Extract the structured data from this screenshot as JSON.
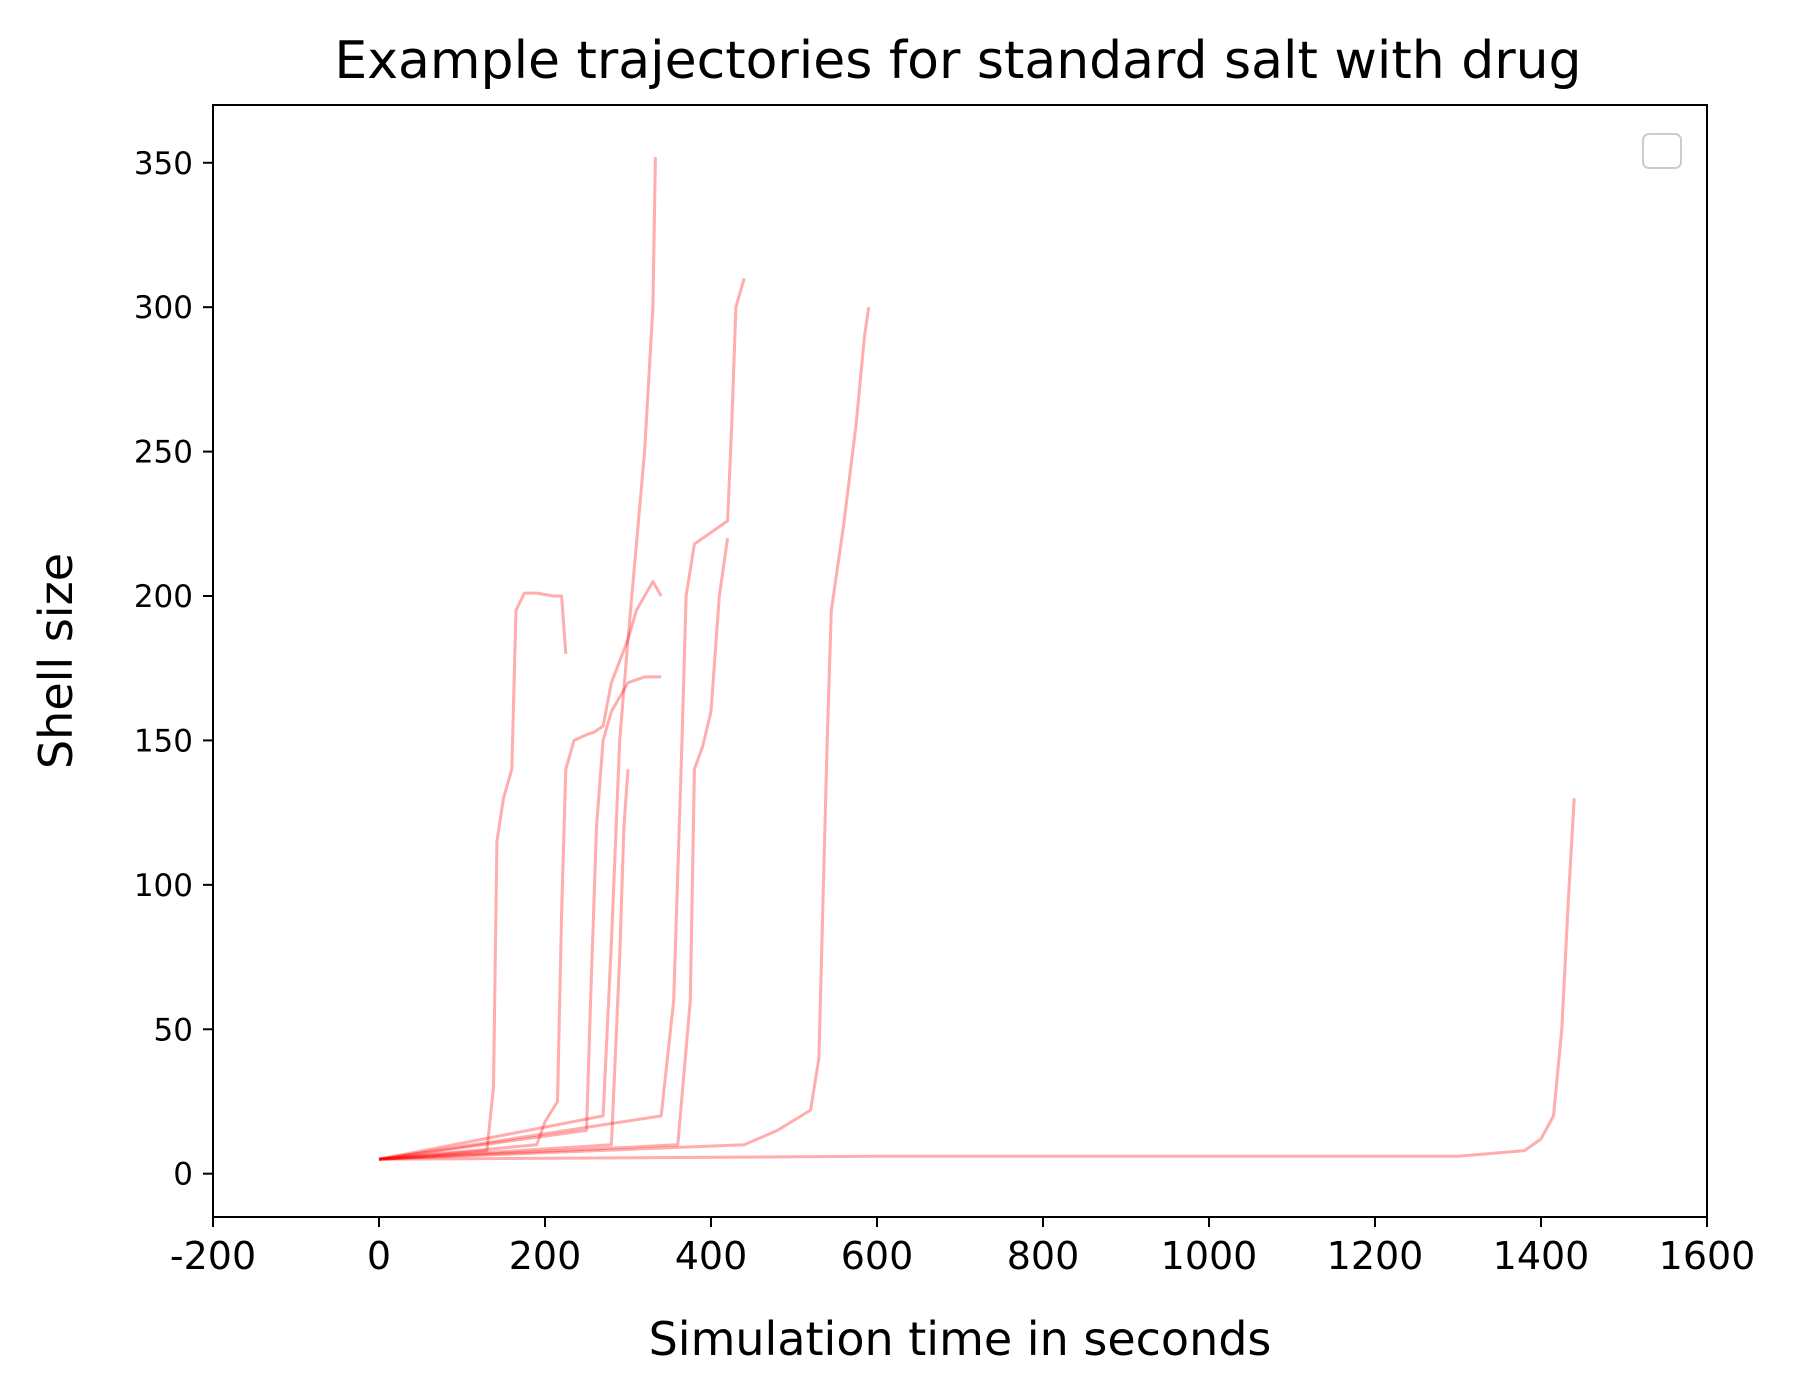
{
  "chart_data": {
    "type": "line",
    "title": "Example trajectories for standard salt with drug",
    "xlabel": "Simulation time in seconds",
    "ylabel": "Shell size",
    "xlim": [
      -200,
      1600
    ],
    "ylim": [
      -15,
      370
    ],
    "x_ticks": [
      "-200",
      "0",
      "200",
      "400",
      "600",
      "800",
      "1000",
      "1200",
      "1400",
      "1600"
    ],
    "y_ticks": [
      "0",
      "50",
      "100",
      "150",
      "200",
      "250",
      "300",
      "350"
    ],
    "legend": {
      "placement": "top-right",
      "entries": []
    },
    "grid": false,
    "series_color": "#ff0000",
    "series": [
      {
        "x": [
          0,
          130,
          138,
          142,
          150,
          160,
          165,
          175,
          190,
          210,
          220,
          225
        ],
        "y": [
          5,
          8,
          30,
          115,
          130,
          140,
          195,
          201,
          201,
          200,
          200,
          180
        ]
      },
      {
        "x": [
          0,
          190,
          200,
          215,
          220,
          225,
          235,
          250,
          260,
          270,
          280,
          300,
          320,
          330,
          333
        ],
        "y": [
          5,
          10,
          18,
          25,
          90,
          140,
          150,
          152,
          153,
          155,
          170,
          185,
          250,
          300,
          352
        ]
      },
      {
        "x": [
          0,
          250,
          255,
          262,
          270,
          280,
          300,
          320,
          340
        ],
        "y": [
          5,
          15,
          60,
          120,
          150,
          160,
          170,
          172,
          172
        ]
      },
      {
        "x": [
          0,
          270,
          280,
          290,
          300,
          310,
          320,
          330,
          340
        ],
        "y": [
          5,
          20,
          80,
          150,
          185,
          195,
          200,
          205,
          200
        ]
      },
      {
        "x": [
          0,
          280,
          290,
          295,
          300
        ],
        "y": [
          5,
          10,
          75,
          120,
          140
        ]
      },
      {
        "x": [
          0,
          340,
          355,
          365,
          370,
          380,
          400,
          410,
          420,
          425,
          430,
          440
        ],
        "y": [
          5,
          20,
          60,
          150,
          200,
          218,
          222,
          224,
          226,
          260,
          300,
          310
        ]
      },
      {
        "x": [
          0,
          360,
          375,
          380,
          390,
          400,
          410,
          420
        ],
        "y": [
          5,
          10,
          60,
          140,
          148,
          160,
          200,
          220
        ]
      },
      {
        "x": [
          0,
          440,
          480,
          520,
          530,
          540,
          545,
          560,
          575,
          585,
          590
        ],
        "y": [
          5,
          10,
          15,
          22,
          40,
          150,
          195,
          225,
          260,
          290,
          300
        ]
      },
      {
        "x": [
          0,
          600,
          1000,
          1300,
          1380,
          1400,
          1415,
          1425,
          1433,
          1440
        ],
        "y": [
          5,
          6,
          6,
          6,
          8,
          12,
          20,
          50,
          95,
          130
        ]
      }
    ]
  }
}
